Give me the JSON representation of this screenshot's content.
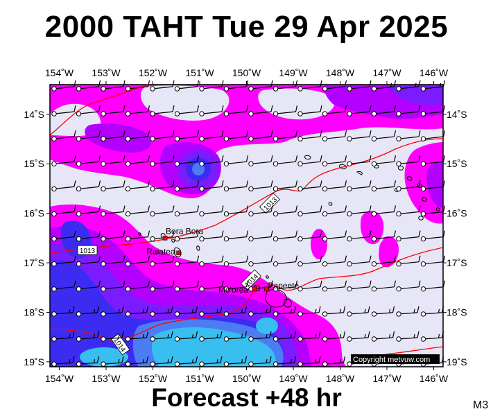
{
  "title": "2000 TAHT Tue 29 Apr 2025",
  "footer": "Forecast +48 hr",
  "model_code": "M3",
  "copyright": "Copyright metvuw.com",
  "colors": {
    "background": "#e6e6f6",
    "wind_magenta": "#ff00ff",
    "wind_purple": "#b400ff",
    "wind_violet": "#7a1cff",
    "wind_blue": "#3c2cf2",
    "wind_lightblue": "#4c7cf4",
    "wind_cyan": "#38bff0",
    "isobar": "#ff0000"
  },
  "map": {
    "lon_range": [
      -154.2,
      -145.8
    ],
    "lat_range": [
      -19.1,
      -13.4
    ],
    "lon_labels": [
      "154˚W",
      "153˚W",
      "152˚W",
      "151˚W",
      "150˚W",
      "149˚W",
      "148˚W",
      "147˚W",
      "146˚W"
    ],
    "lat_labels": [
      "14˚S",
      "15˚S",
      "16˚S",
      "17˚S",
      "18˚S",
      "19˚S"
    ],
    "places": [
      {
        "name": "Bora Bora",
        "lon": -151.74,
        "lat": -16.5
      },
      {
        "name": "Raiatea",
        "lon": -151.45,
        "lat": -16.8
      },
      {
        "name": "Mo'orea",
        "lon": -149.83,
        "lat": -17.53
      },
      {
        "name": "Papeete",
        "lon": -149.57,
        "lat": -17.53
      }
    ],
    "isobars": [
      {
        "label": "1013",
        "label_lon": -149.5,
        "label_lat": -15.8
      },
      {
        "label": "1013",
        "label_lon": -153.4,
        "label_lat": -16.75
      },
      {
        "label": "1014",
        "label_lon": -149.9,
        "label_lat": -17.35
      },
      {
        "label": "1014",
        "label_lon": -152.7,
        "label_lat": -18.65
      }
    ]
  }
}
